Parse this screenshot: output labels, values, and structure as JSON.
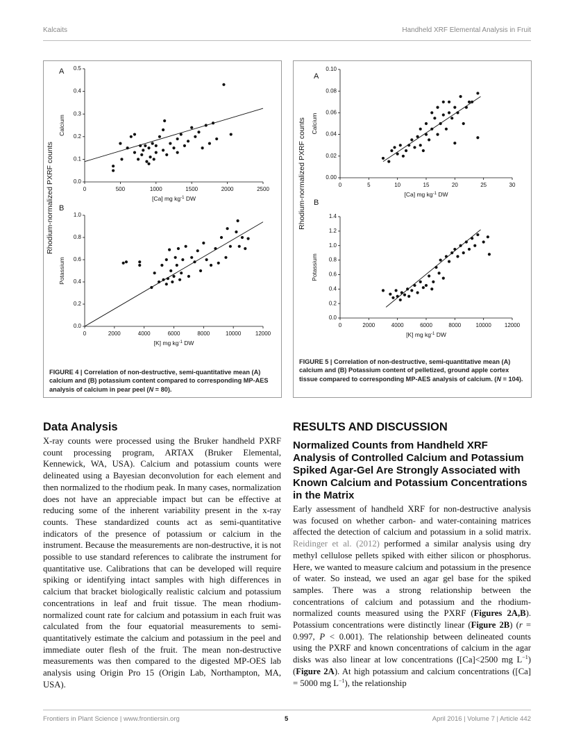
{
  "header": {
    "left": "Kalcaits",
    "right": "Handheld XRF Elemental Analysis in Fruit"
  },
  "figures": [
    {
      "label": "FIGURE 4 |",
      "caption": [
        " Correlation of non-destructive, semi-quantitative mean (A) calcium and (B) potassium content compared to corresponding MP-AES analysis of calcium in pear peel (",
        "N",
        " = 80)."
      ],
      "y_axis_label": "Rhodium-normalized PXRF counts",
      "panels": [
        {
          "letter": "A",
          "y_label": "Calcium",
          "x_label": [
            "[Ca] mg kg",
            "-1",
            " DW"
          ],
          "xlim": [
            0,
            2500
          ],
          "ylim": [
            0,
            0.5
          ],
          "xticks": [
            0,
            500,
            1000,
            1500,
            2000,
            2500
          ],
          "yticks": [
            {
              "value": 0,
              "label": "0.0"
            },
            0.1,
            0.2,
            0.3,
            0.4,
            0.5
          ],
          "points": {
            "x": [
              400,
              400,
              500,
              520,
              600,
              650,
              700,
              700,
              750,
              780,
              800,
              820,
              850,
              870,
              900,
              900,
              920,
              950,
              970,
              1000,
              1000,
              1050,
              1100,
              1100,
              1120,
              1150,
              1200,
              1250,
              1300,
              1300,
              1350,
              1400,
              1450,
              1500,
              1550,
              1600,
              1650,
              1700,
              1750,
              1800,
              1850,
              1950,
              2050
            ],
            "y": [
              0.05,
              0.07,
              0.17,
              0.1,
              0.15,
              0.2,
              0.21,
              0.13,
              0.1,
              0.16,
              0.12,
              0.14,
              0.16,
              0.09,
              0.08,
              0.15,
              0.11,
              0.17,
              0.1,
              0.13,
              0.16,
              0.2,
              0.14,
              0.23,
              0.27,
              0.12,
              0.17,
              0.15,
              0.19,
              0.13,
              0.21,
              0.16,
              0.18,
              0.24,
              0.2,
              0.22,
              0.15,
              0.25,
              0.17,
              0.26,
              0.19,
              0.43,
              0.21
            ]
          },
          "fit": {
            "x": [
              0,
              2500
            ],
            "y": [
              0.09,
              0.325
            ]
          }
        },
        {
          "letter": "B",
          "y_label": "Potassium",
          "x_label": [
            "[K] mg kg",
            "-1",
            " DW"
          ],
          "xlim": [
            0,
            12000
          ],
          "ylim": [
            0,
            1
          ],
          "xticks": [
            0,
            2000,
            4000,
            6000,
            8000,
            10000,
            12000
          ],
          "yticks": [
            {
              "value": 0,
              "label": "0.0"
            },
            0.2,
            0.4,
            0.6,
            0.8,
            {
              "value": 1,
              "label": "1.0"
            }
          ],
          "points": {
            "x": [
              2600,
              2800,
              3700,
              3700,
              4500,
              4700,
              5000,
              5200,
              5300,
              5500,
              5500,
              5600,
              5700,
              5800,
              5900,
              6000,
              6100,
              6200,
              6300,
              6400,
              6500,
              6600,
              6800,
              7000,
              7200,
              7400,
              7600,
              7800,
              8000,
              8200,
              8500,
              8800,
              9000,
              9200,
              9500,
              9600,
              9800,
              10200,
              10300,
              10400,
              10600,
              10800,
              11000
            ],
            "y": [
              0.57,
              0.58,
              0.55,
              0.58,
              0.35,
              0.48,
              0.4,
              0.55,
              0.42,
              0.38,
              0.6,
              0.43,
              0.69,
              0.5,
              0.4,
              0.45,
              0.62,
              0.55,
              0.7,
              0.42,
              0.48,
              0.6,
              0.72,
              0.45,
              0.62,
              0.58,
              0.68,
              0.5,
              0.75,
              0.6,
              0.55,
              0.7,
              0.57,
              0.8,
              0.62,
              0.88,
              0.72,
              0.85,
              0.95,
              0.72,
              0.8,
              0.7,
              0.79
            ]
          },
          "fit": {
            "x": [
              0,
              12000
            ],
            "y": [
              0,
              0.94
            ]
          }
        }
      ]
    },
    {
      "label": "FIGURE 5 |",
      "caption": [
        " Correlation of non-destructive, semi-quantitative mean (A) calcium and (B) Potassium content of pelletized, ground apple cortex tissue compared to corresponding MP-AES analysis of calcium. (",
        "N",
        " = 104)."
      ],
      "y_axis_label": "Rhodium-normalized PXRF counts",
      "panels": [
        {
          "letter": "A",
          "y_label": "Calcium",
          "x_label": [
            "[Ca] mg kg",
            "-1",
            " DW"
          ],
          "xlim": [
            0,
            30
          ],
          "ylim": [
            0,
            0.1
          ],
          "xticks": [
            0,
            5,
            10,
            15,
            20,
            25,
            30
          ],
          "yticks": [
            {
              "value": 0,
              "label": "0.00"
            },
            0.02,
            0.04,
            0.06,
            0.08,
            {
              "value": 0.1,
              "label": "0.10"
            }
          ],
          "points": {
            "x": [
              7.5,
              8.5,
              9,
              9.5,
              10,
              10.5,
              11,
              11.5,
              12,
              12.5,
              13,
              13.5,
              14,
              14,
              14.5,
              15,
              15,
              15.5,
              16,
              16,
              16.5,
              17,
              17,
              17.5,
              18,
              18,
              18.5,
              19,
              19,
              19.5,
              20,
              20,
              20.5,
              21,
              21.5,
              22,
              22.5,
              23,
              24,
              24
            ],
            "y": [
              0.018,
              0.015,
              0.025,
              0.028,
              0.022,
              0.03,
              0.02,
              0.025,
              0.03,
              0.035,
              0.028,
              0.038,
              0.03,
              0.045,
              0.025,
              0.04,
              0.05,
              0.035,
              0.045,
              0.06,
              0.055,
              0.04,
              0.065,
              0.05,
              0.058,
              0.07,
              0.045,
              0.06,
              0.07,
              0.055,
              0.065,
              0.032,
              0.06,
              0.075,
              0.05,
              0.065,
              0.07,
              0.07,
              0.037,
              0.078
            ]
          },
          "fit": {
            "x": [
              7.5,
              24.5
            ],
            "y": [
              0.015,
              0.075
            ]
          }
        },
        {
          "letter": "B",
          "y_label": "Potassium",
          "x_label": [
            "[K] mg kg",
            "-1",
            " DW"
          ],
          "xlim": [
            0,
            12000
          ],
          "ylim": [
            0,
            1.4
          ],
          "xticks": [
            0,
            2000,
            4000,
            6000,
            8000,
            10000,
            12000
          ],
          "yticks": [
            {
              "value": 0,
              "label": "0.0"
            },
            0.2,
            0.4,
            0.6,
            0.8,
            {
              "value": 1,
              "label": "1.0"
            },
            1.2,
            1.4
          ],
          "points": {
            "x": [
              3000,
              3500,
              3700,
              3900,
              4000,
              4200,
              4300,
              4500,
              4700,
              4800,
              5000,
              5200,
              5400,
              5600,
              5800,
              6000,
              6200,
              6400,
              6500,
              6700,
              6900,
              7000,
              7200,
              7400,
              7600,
              7800,
              8000,
              8200,
              8400,
              8600,
              8800,
              9000,
              9200,
              9400,
              9600,
              10000,
              10300,
              10400
            ],
            "y": [
              0.38,
              0.33,
              0.28,
              0.38,
              0.3,
              0.25,
              0.35,
              0.32,
              0.4,
              0.3,
              0.38,
              0.45,
              0.35,
              0.5,
              0.42,
              0.45,
              0.58,
              0.4,
              0.5,
              0.7,
              0.62,
              0.8,
              0.55,
              0.85,
              0.78,
              0.9,
              0.95,
              0.85,
              1.0,
              0.9,
              1.05,
              0.95,
              1.1,
              1.0,
              1.15,
              1.05,
              1.12,
              0.88
            ]
          },
          "fit": {
            "x": [
              3200,
              9800
            ],
            "y": [
              0.15,
              1.22
            ]
          }
        }
      ]
    }
  ],
  "left_column": {
    "heading": "Data Analysis",
    "paragraph": "X-ray counts were processed using the Bruker handheld PXRF count processing program, ARTAX (Bruker Elemental, Kennewick, WA, USA). Calcium and potassium counts were delineated using a Bayesian deconvolution for each element and then normalized to the rhodium peak. In many cases, normalization does not have an appreciable impact but can be effective at reducing some of the inherent variability present in the x-ray counts. These standardized counts act as semi-quantitative indicators of the presence of potassium or calcium in the instrument. Because the measurements are non-destructive, it is not possible to use standard references to calibrate the instrument for quantitative use. Calibrations that can be developed will require spiking or identifying intact samples with high differences in calcium that bracket biologically realistic calcium and potassium concentrations in leaf and fruit tissue. The mean rhodium-normalized count rate for calcium and potassium in each fruit was calculated from the four equatorial measurements to semi-quantitatively estimate the calcium and potassium in the peel and immediate outer flesh of the fruit. The mean non-destructive measurements was then compared to the digested MP-OES lab analysis using Origin Pro 15 (Origin Lab, Northampton, MA, USA)."
  },
  "right_column": {
    "section": "RESULTS AND DISCUSSION",
    "subheading": "Normalized Counts from Handheld XRF Analysis of Controlled Calcium and Potassium Spiked Agar-Gel Are Strongly Associated with Known Calcium and Potassium Concentrations in the Matrix",
    "paragraph": [
      "Early assessment of handheld XRF for non-destructive analysis was focused on whether carbon- and water-containing matrices affected the detection of calcium and potassium in a solid matrix. ",
      "Reidinger et al. (2012)",
      " performed a similar analysis using dry methyl cellulose pellets spiked with either silicon or phosphorus. Here, we wanted to measure calcium and potassium in the presence of water. So instead, we used an agar gel base for the spiked samples. There was a strong relationship between the concentrations of calcium and potassium and the rhodium-normalized counts measured using the PXRF (",
      "Figures 2A,B",
      "). Potassium concentrations were distinctly linear (",
      "Figure 2B",
      ") (",
      "r",
      " = 0.997, ",
      "P",
      " < 0.001). The relationship between delineated counts using the PXRF and known concentrations of calcium in the agar disks was also linear at low concentrations ([Ca]<2500 mg L",
      "−1",
      ") (",
      "Figure 2A",
      "). At high potassium and calcium concentrations ([Ca] = 5000 mg L",
      "−1",
      "), the relationship"
    ]
  },
  "footer": {
    "left": "Frontiers in Plant Science | www.frontiersin.org",
    "page": "5",
    "right": "April 2016 | Volume 7 | Article 442"
  }
}
